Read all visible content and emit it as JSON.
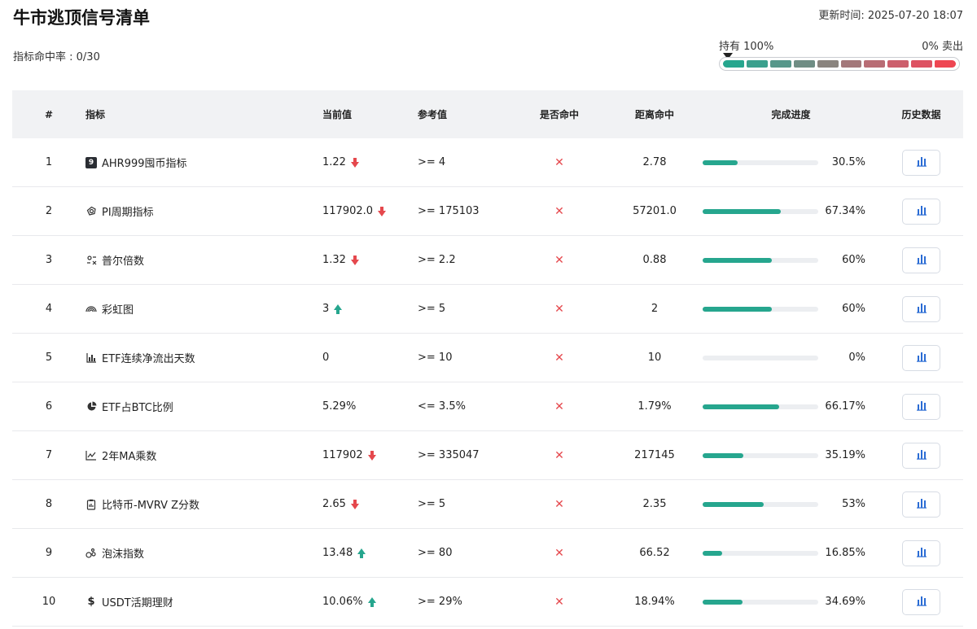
{
  "page": {
    "title": "牛市逃顶信号清单",
    "updated": "更新时间: 2025-07-20 18:07",
    "hitrate": "指标命中率 : 0/30"
  },
  "gauge": {
    "left_label": "持有 100%",
    "right_label": "0% 卖出",
    "colors": [
      "#26a68e",
      "#3aa08d",
      "#56978a",
      "#6f8d84",
      "#8a847e",
      "#a3787a",
      "#b86c74",
      "#cc5f6c",
      "#dd5262",
      "#ee4652"
    ]
  },
  "table": {
    "headers": {
      "num": "#",
      "name": "指标",
      "current": "当前值",
      "reference": "参考值",
      "hit": "是否命中",
      "distance": "距离命中",
      "progress": "完成进度",
      "history": "历史数据"
    },
    "rows": [
      {
        "num": "1",
        "icon": "ahr999-badge-icon",
        "icon_text": "9",
        "name": "AHR999囤币指标",
        "current": "1.22",
        "trend": "down",
        "reference": ">= 4",
        "hit": "✕",
        "distance": "2.78",
        "progress": 30.5,
        "progress_label": "30.5%"
      },
      {
        "num": "2",
        "icon": "cycle-icon",
        "icon_text": "",
        "name": "PI周期指标",
        "current": "117902.0",
        "trend": "down",
        "reference": ">= 175103",
        "hit": "✕",
        "distance": "57201.0",
        "progress": 67.34,
        "progress_label": "67.34%"
      },
      {
        "num": "3",
        "icon": "puell-icon",
        "icon_text": "",
        "name": "普尔倍数",
        "current": "1.32",
        "trend": "down",
        "reference": ">= 2.2",
        "hit": "✕",
        "distance": "0.88",
        "progress": 60,
        "progress_label": "60%"
      },
      {
        "num": "4",
        "icon": "rainbow-icon",
        "icon_text": "",
        "name": "彩虹图",
        "current": "3",
        "trend": "up",
        "reference": ">= 5",
        "hit": "✕",
        "distance": "2",
        "progress": 60,
        "progress_label": "60%"
      },
      {
        "num": "5",
        "icon": "bar-chart-icon",
        "icon_text": "",
        "name": "ETF连续净流出天数",
        "current": "0",
        "trend": "none",
        "reference": ">= 10",
        "hit": "✕",
        "distance": "10",
        "progress": 0,
        "progress_label": "0%"
      },
      {
        "num": "6",
        "icon": "pie-chart-icon",
        "icon_text": "",
        "name": "ETF占BTC比例",
        "current": "5.29%",
        "trend": "none",
        "reference": "<= 3.5%",
        "hit": "✕",
        "distance": "1.79%",
        "progress": 66.17,
        "progress_label": "66.17%"
      },
      {
        "num": "7",
        "icon": "line-chart-icon",
        "icon_text": "",
        "name": "2年MA乘数",
        "current": "117902",
        "trend": "down",
        "reference": ">= 335047",
        "hit": "✕",
        "distance": "217145",
        "progress": 35.19,
        "progress_label": "35.19%"
      },
      {
        "num": "8",
        "icon": "clipboard-icon",
        "icon_text": "",
        "name": "比特币-MVRV Z分数",
        "current": "2.65",
        "trend": "down",
        "reference": ">= 5",
        "hit": "✕",
        "distance": "2.35",
        "progress": 53,
        "progress_label": "53%"
      },
      {
        "num": "9",
        "icon": "bubbles-icon",
        "icon_text": "",
        "name": "泡沫指数",
        "current": "13.48",
        "trend": "up",
        "reference": ">= 80",
        "hit": "✕",
        "distance": "66.52",
        "progress": 16.85,
        "progress_label": "16.85%"
      },
      {
        "num": "10",
        "icon": "dollar-icon",
        "icon_text": "$",
        "name": "USDT活期理财",
        "current": "10.06%",
        "trend": "up",
        "reference": ">= 29%",
        "hit": "✕",
        "distance": "18.94%",
        "progress": 34.69,
        "progress_label": "34.69%"
      }
    ]
  },
  "colors": {
    "progress": "#26a68e",
    "down": "#e5484d",
    "up": "#26a68e",
    "history_icon": "#2b6cd4"
  }
}
